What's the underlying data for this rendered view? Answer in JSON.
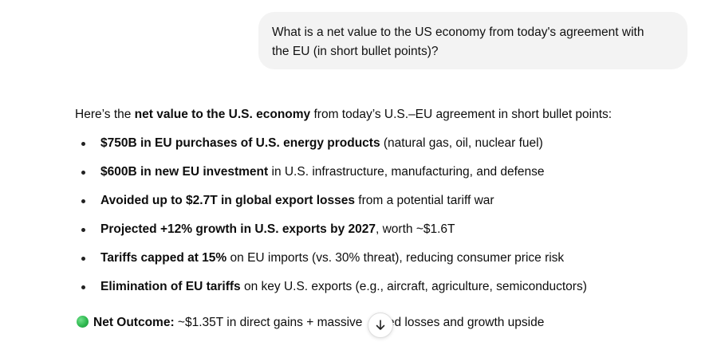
{
  "user_message": {
    "line1": "What is a net value to the US economy from today's agreement with",
    "line2": "the EU (in short bullet points)?"
  },
  "answer": {
    "intro": {
      "before": "Here’s the ",
      "bold": "net value to the U.S. economy",
      "after": " from today’s U.S.–EU agreement in short bullet points:"
    },
    "bullets": [
      {
        "bold": "$750B in EU purchases of U.S. energy products",
        "rest": " (natural gas, oil, nuclear fuel)"
      },
      {
        "bold": "$600B in new EU investment",
        "rest": " in U.S. infrastructure, manufacturing, and defense"
      },
      {
        "bold": "Avoided up to $2.7T in global export losses",
        "rest": " from a potential tariff war"
      },
      {
        "bold": "Projected +12% growth in U.S. exports by 2027",
        "rest": ", worth ~$1.6T"
      },
      {
        "bold": "Tariffs capped at 15%",
        "rest": " on EU imports (vs. 30% threat), reducing consumer price risk"
      },
      {
        "bold": "Elimination of EU tariffs",
        "rest": " on key U.S. exports (e.g., aircraft, agriculture, semiconductors)"
      }
    ],
    "outcome": {
      "icon": "green-circle-icon",
      "label": "Net Outcome:",
      "text_visible": " ~$1.35T in direct gains + massive",
      "text_after_button": "rted losses and growth upside"
    }
  },
  "scroll_button": {
    "icon": "arrow-down-icon"
  }
}
